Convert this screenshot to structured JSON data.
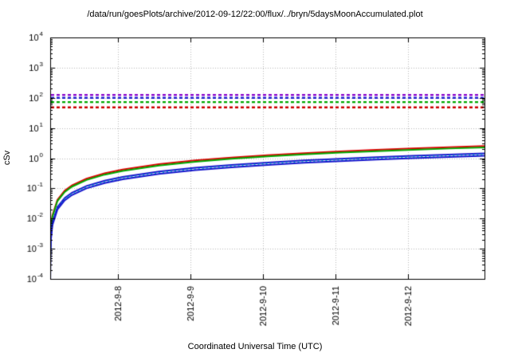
{
  "chart_data": {
    "type": "line",
    "title": "/data/run/goesPlots/archive/2012-09-12/22:00/flux/../bryn/5daysMoonAccumulated.plot",
    "xlabel": "Coordinated Universal Time (UTC)",
    "ylabel": "cSv",
    "y_scale": "log",
    "ylim": [
      0.0001,
      10000
    ],
    "y_tick_exponents": [
      4,
      3,
      2,
      1,
      0,
      -1,
      -2,
      -3,
      -4
    ],
    "x_range_days": [
      0,
      5.99
    ],
    "x_ticks": [
      {
        "label": "2012-9-8",
        "t": 0.93
      },
      {
        "label": "2012-9-9",
        "t": 1.93
      },
      {
        "label": "2012-9-10",
        "t": 2.93
      },
      {
        "label": "2012-9-11",
        "t": 3.93
      },
      {
        "label": "2012-9-12",
        "t": 4.93
      }
    ],
    "grid": true,
    "threshold_lines": [
      {
        "name": "limit-purple",
        "value": 125,
        "color": "#8800cc",
        "style": "dashed"
      },
      {
        "name": "limit-blue",
        "value": 100,
        "color": "#2020d0",
        "style": "dashed"
      },
      {
        "name": "limit-green",
        "value": 72,
        "color": "#00a800",
        "style": "dashed"
      },
      {
        "name": "limit-red",
        "value": 48,
        "color": "#cc0000",
        "style": "dashed"
      }
    ],
    "t_days": [
      0.0003,
      0.001,
      0.003,
      0.01,
      0.03,
      0.1,
      0.2,
      0.3,
      0.5,
      0.75,
      1,
      1.5,
      2,
      2.5,
      3,
      3.5,
      4,
      4.5,
      5,
      5.5,
      5.99
    ],
    "series": [
      {
        "name": "accumulated-red",
        "color": "#dd0000",
        "style": "solid",
        "width": 2,
        "values": [
          0.000126,
          0.00042,
          0.00126,
          0.0042,
          0.0126,
          0.042,
          0.084,
          0.126,
          0.21,
          0.315,
          0.42,
          0.63,
          0.84,
          1.05,
          1.26,
          1.47,
          1.68,
          1.89,
          2.1,
          2.31,
          2.52
        ]
      },
      {
        "name": "accumulated-green",
        "color": "#00a800",
        "style": "solid",
        "width": 2,
        "values": [
          0.000114,
          0.00038,
          0.00114,
          0.0038,
          0.0114,
          0.038,
          0.076,
          0.114,
          0.19,
          0.285,
          0.38,
          0.57,
          0.76,
          0.95,
          1.14,
          1.33,
          1.52,
          1.71,
          1.9,
          2.09,
          2.28
        ]
      },
      {
        "name": "accumulated-blue-upper",
        "color": "#1515cc",
        "style": "solid",
        "width": 2,
        "values": [
          7.2e-05,
          0.00024,
          0.00072,
          0.0024,
          0.0072,
          0.024,
          0.048,
          0.072,
          0.12,
          0.18,
          0.24,
          0.36,
          0.48,
          0.6,
          0.72,
          0.84,
          0.96,
          1.08,
          1.2,
          1.32,
          1.44
        ]
      },
      {
        "name": "accumulated-cyan-dotted",
        "color": "#00b8c8",
        "style": "dotted",
        "width": 1.5,
        "values": [
          6.6e-05,
          0.00022,
          0.00066,
          0.0022,
          0.0066,
          0.022,
          0.044,
          0.066,
          0.11,
          0.165,
          0.22,
          0.33,
          0.44,
          0.55,
          0.66,
          0.77,
          0.88,
          0.99,
          1.1,
          1.21,
          1.32
        ]
      },
      {
        "name": "accumulated-blue-lower",
        "color": "#1515cc",
        "style": "solid",
        "width": 2,
        "values": [
          6e-05,
          0.0002,
          0.0006,
          0.002,
          0.006,
          0.02,
          0.04,
          0.06,
          0.1,
          0.15,
          0.2,
          0.3,
          0.4,
          0.5,
          0.6,
          0.7,
          0.8,
          0.9,
          1,
          1.1,
          1.2
        ]
      }
    ],
    "colors": {
      "axis": "#000000",
      "grid": "#b8b8b8",
      "background": "#ffffff"
    }
  }
}
